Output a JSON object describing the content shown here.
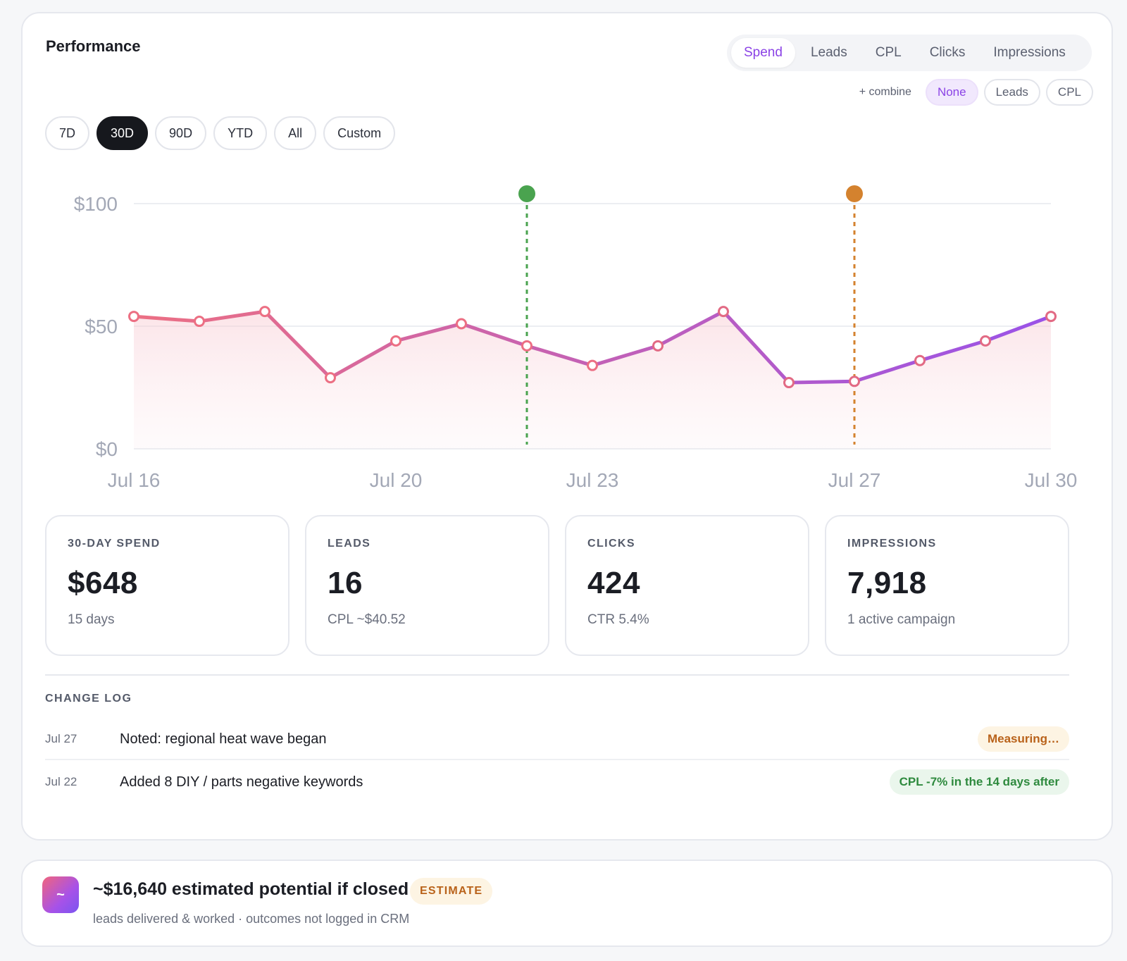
{
  "performance": {
    "title": "Performance",
    "metric_tabs": [
      {
        "label": "Spend",
        "active": true
      },
      {
        "label": "Leads",
        "active": false
      },
      {
        "label": "CPL",
        "active": false
      },
      {
        "label": "Clicks",
        "active": false
      },
      {
        "label": "Impressions",
        "active": false
      }
    ],
    "combine": {
      "label": "+ combine",
      "options": [
        {
          "label": "None",
          "active": true
        },
        {
          "label": "Leads",
          "active": false
        },
        {
          "label": "CPL",
          "active": false
        }
      ]
    },
    "ranges": [
      {
        "label": "7D",
        "active": false
      },
      {
        "label": "30D",
        "active": true
      },
      {
        "label": "90D",
        "active": false
      },
      {
        "label": "YTD",
        "active": false
      },
      {
        "label": "All",
        "active": false
      },
      {
        "label": "Custom",
        "active": false
      }
    ]
  },
  "chart_data": {
    "type": "area",
    "x": [
      "Jul 16",
      "Jul 17",
      "Jul 18",
      "Jul 19",
      "Jul 20",
      "Jul 21",
      "Jul 22",
      "Jul 23",
      "Jul 24",
      "Jul 25",
      "Jul 26",
      "Jul 27",
      "Jul 28",
      "Jul 29",
      "Jul 30"
    ],
    "x_tick_labels": [
      "Jul 16",
      "Jul 20",
      "Jul 23",
      "Jul 27",
      "Jul 30"
    ],
    "series": [
      {
        "values": [
          54,
          52,
          56,
          29,
          44,
          51,
          42,
          34,
          42,
          56,
          27,
          27.5,
          36,
          44,
          54
        ]
      }
    ],
    "y_ticks": [
      "$100",
      "$50",
      "$0"
    ],
    "ylim": [
      0,
      100
    ],
    "events": [
      {
        "x": "Jul 22",
        "color": "#4aa34f"
      },
      {
        "x": "Jul 27",
        "color": "#d4822e"
      }
    ],
    "line_gradient": [
      "#ec6f83",
      "#9a52e8"
    ],
    "grid": true
  },
  "stats": [
    {
      "label": "30-DAY SPEND",
      "value": "$648",
      "sub": "15 days"
    },
    {
      "label": "LEADS",
      "value": "16",
      "sub": "CPL ~$40.52"
    },
    {
      "label": "CLICKS",
      "value": "424",
      "sub": "CTR 5.4%"
    },
    {
      "label": "IMPRESSIONS",
      "value": "7,918",
      "sub": "1 active campaign"
    }
  ],
  "changelog": {
    "title": "CHANGE LOG",
    "entries": [
      {
        "date": "Jul 27",
        "text": "Noted: regional heat wave began",
        "badge": "Measuring…",
        "badge_color": "#b9621a"
      },
      {
        "date": "Jul 22",
        "text": "Added 8 DIY / parts negative keywords",
        "badge": "CPL -7% in the 14 days after",
        "badge_color": "#2e8a3e"
      }
    ]
  },
  "potential": {
    "icon_glyph": "~",
    "title": "~$16,640 estimated potential if closed",
    "badge": "ESTIMATE",
    "subtitle": "leads delivered & worked · outcomes not logged in CRM"
  }
}
